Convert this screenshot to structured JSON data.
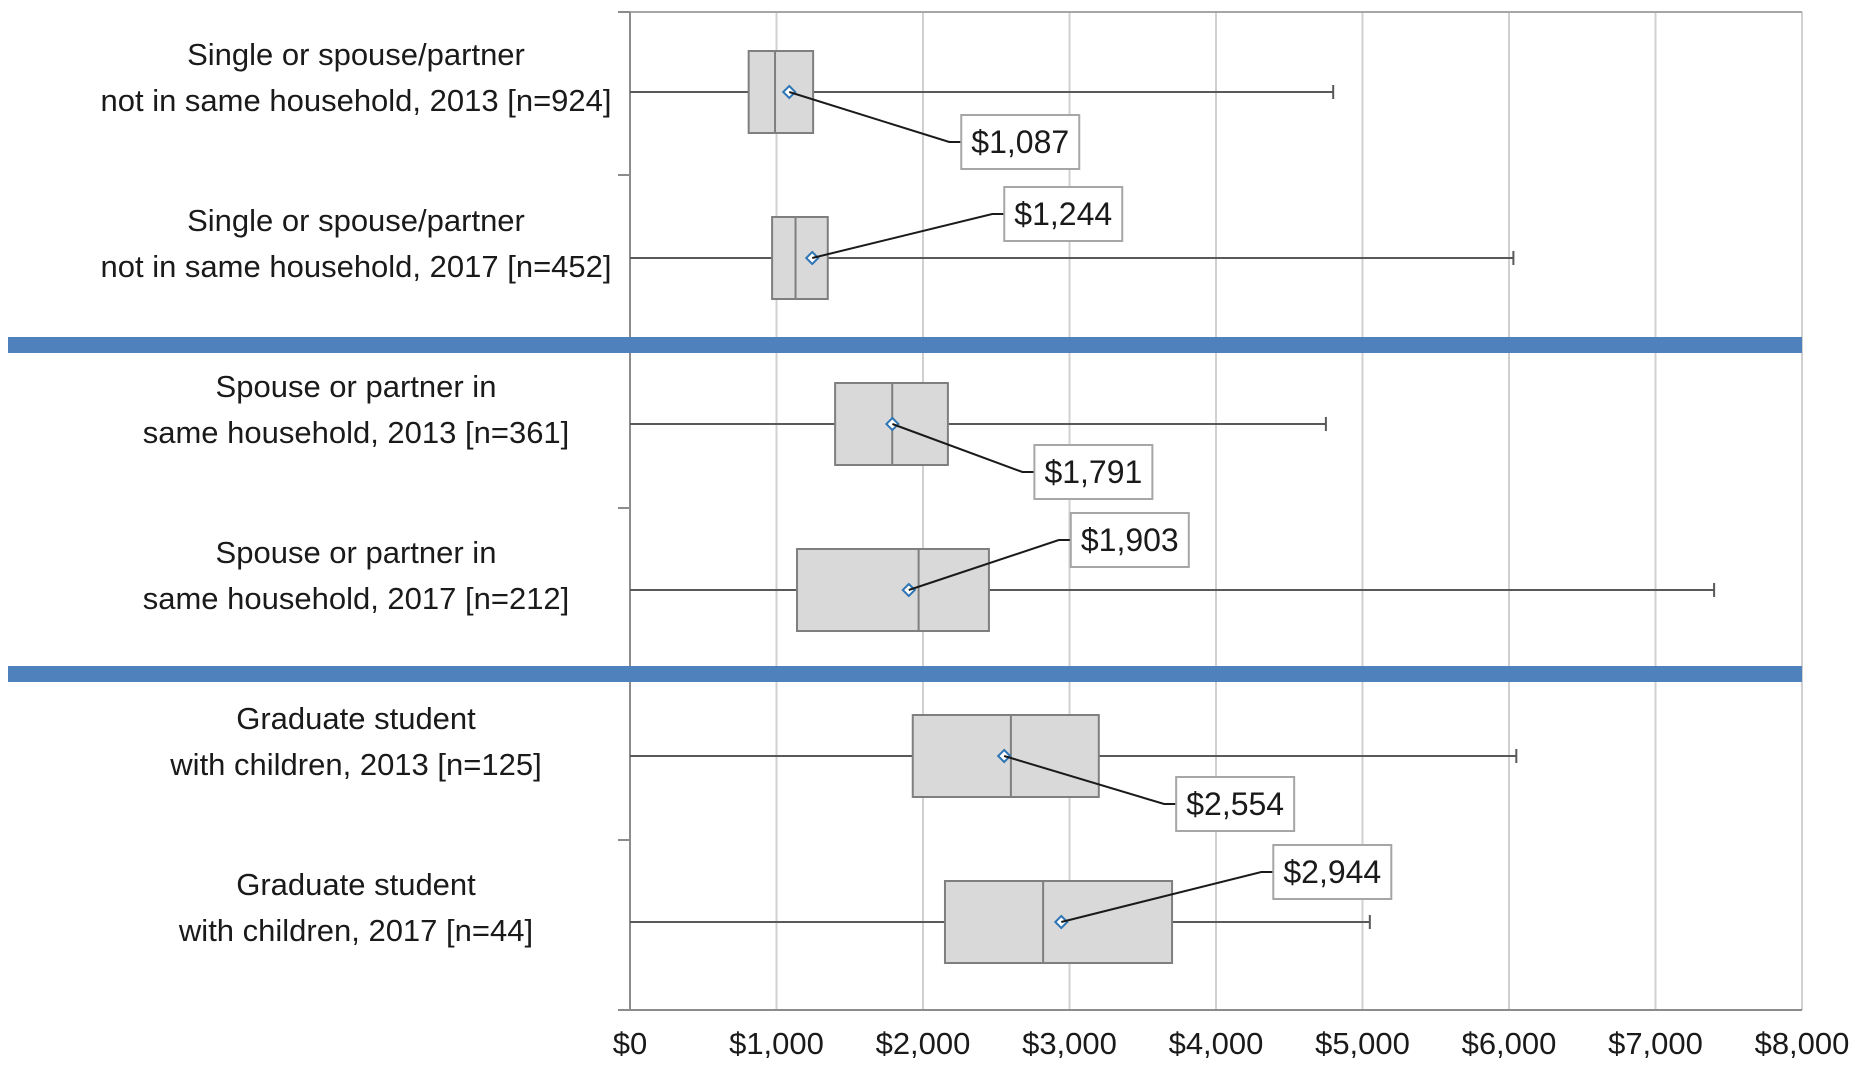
{
  "chart_data": {
    "type": "box",
    "orientation": "horizontal",
    "xlim": [
      0,
      8000
    ],
    "x_ticks": [
      0,
      1000,
      2000,
      3000,
      4000,
      5000,
      6000,
      7000,
      8000
    ],
    "x_tick_labels": [
      "$0",
      "$1,000",
      "$2,000",
      "$3,000",
      "$4,000",
      "$5,000",
      "$6,000",
      "$7,000",
      "$8,000"
    ],
    "grid": true,
    "separator_color": "#4f81bd",
    "box_fill": "#d9d9d9",
    "mean_marker_color": "#2e75b6",
    "groups": [
      {
        "label_lines": [
          "Single or spouse/partner",
          "not in same household, 2013 [n=924]"
        ],
        "min": 0,
        "q1": 810,
        "median": 990,
        "q3": 1250,
        "max": 4800,
        "mean": 1087,
        "mean_label": "$1,087"
      },
      {
        "label_lines": [
          "Single or spouse/partner",
          "not in same household, 2017 [n=452]"
        ],
        "min": 0,
        "q1": 970,
        "median": 1130,
        "q3": 1350,
        "max": 6030,
        "mean": 1244,
        "mean_label": "$1,244"
      },
      {
        "label_lines": [
          "Spouse or partner in",
          "same household, 2013 [n=361]"
        ],
        "min": 0,
        "q1": 1400,
        "median": 1790,
        "q3": 2170,
        "max": 4750,
        "mean": 1791,
        "mean_label": "$1,791"
      },
      {
        "label_lines": [
          "Spouse or partner in",
          "same household, 2017 [n=212]"
        ],
        "min": 0,
        "q1": 1140,
        "median": 1970,
        "q3": 2450,
        "max": 7400,
        "mean": 1903,
        "mean_label": "$1,903"
      },
      {
        "label_lines": [
          "Graduate student",
          "with children, 2013 [n=125]"
        ],
        "min": 0,
        "q1": 1930,
        "median": 2600,
        "q3": 3200,
        "max": 6050,
        "mean": 2554,
        "mean_label": "$2,554"
      },
      {
        "label_lines": [
          "Graduate student",
          "with children, 2017 [n=44]"
        ],
        "min": 0,
        "q1": 2150,
        "median": 2820,
        "q3": 3700,
        "max": 5050,
        "mean": 2944,
        "mean_label": "$2,944"
      }
    ]
  }
}
